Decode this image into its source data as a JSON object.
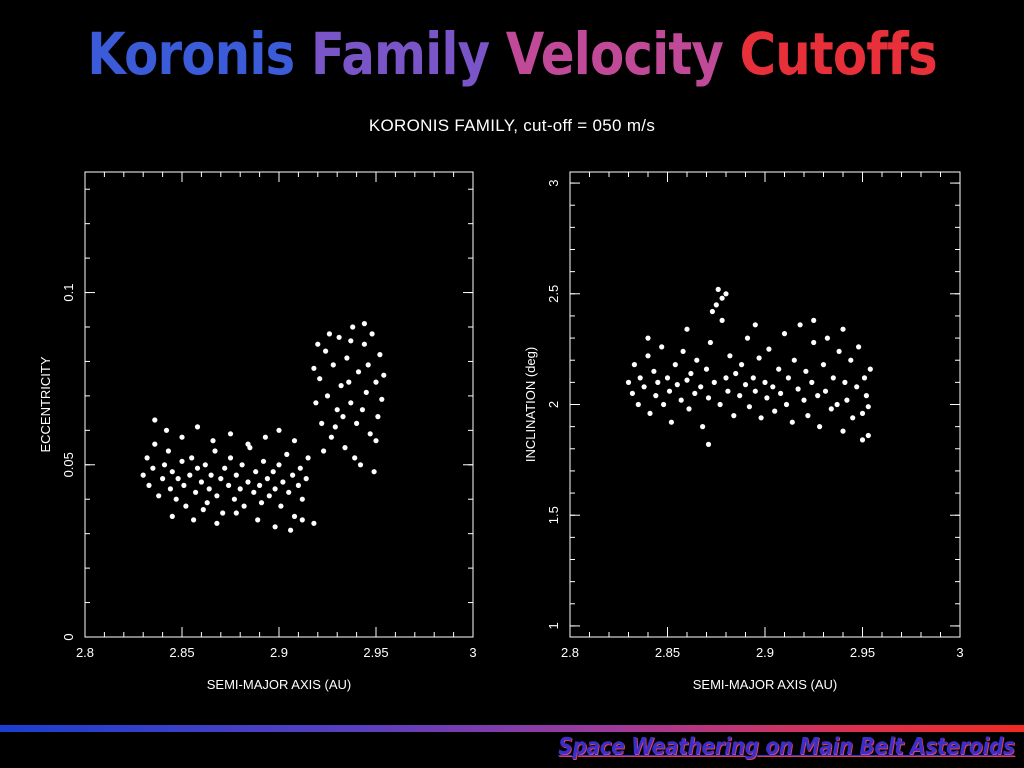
{
  "slide": {
    "title_words": [
      {
        "text": "Koronis",
        "color": "#3b5bd8"
      },
      {
        "text": "Family",
        "color": "#7a55c8"
      },
      {
        "text": "Velocity",
        "color": "#c04a98"
      },
      {
        "text": "Cutoffs",
        "color": "#e8303a"
      }
    ],
    "footer": "Space Weathering on Main Belt Asteroids"
  },
  "plot_heading": "KORONIS FAMILY, cut-off = 050 m/s",
  "chart_data": [
    {
      "type": "scatter",
      "name": "eccentricity-plot",
      "xlabel": "SEMI-MAJOR AXIS (AU)",
      "ylabel": "ECCENTRICITY",
      "xlim": [
        2.8,
        3.0
      ],
      "ylim": [
        0,
        0.135
      ],
      "xticks": [
        2.8,
        2.85,
        2.9,
        2.95,
        3
      ],
      "xtick_labels": [
        "2.8",
        "2.85",
        "2.9",
        "2.95",
        "3"
      ],
      "yticks": [
        0,
        0.05,
        0.1
      ],
      "ytick_labels": [
        "0",
        "0.05",
        "0.1"
      ],
      "marker_color": "#ffffff",
      "points": [
        [
          2.83,
          0.047
        ],
        [
          2.832,
          0.052
        ],
        [
          2.833,
          0.044
        ],
        [
          2.835,
          0.049
        ],
        [
          2.836,
          0.056
        ],
        [
          2.838,
          0.041
        ],
        [
          2.84,
          0.046
        ],
        [
          2.841,
          0.05
        ],
        [
          2.843,
          0.054
        ],
        [
          2.844,
          0.043
        ],
        [
          2.845,
          0.048
        ],
        [
          2.847,
          0.04
        ],
        [
          2.848,
          0.046
        ],
        [
          2.85,
          0.051
        ],
        [
          2.851,
          0.044
        ],
        [
          2.852,
          0.038
        ],
        [
          2.854,
          0.047
        ],
        [
          2.855,
          0.052
        ],
        [
          2.857,
          0.042
        ],
        [
          2.858,
          0.049
        ],
        [
          2.86,
          0.045
        ],
        [
          2.861,
          0.037
        ],
        [
          2.862,
          0.05
        ],
        [
          2.864,
          0.043
        ],
        [
          2.865,
          0.047
        ],
        [
          2.867,
          0.054
        ],
        [
          2.868,
          0.041
        ],
        [
          2.87,
          0.046
        ],
        [
          2.871,
          0.036
        ],
        [
          2.872,
          0.049
        ],
        [
          2.874,
          0.044
        ],
        [
          2.875,
          0.052
        ],
        [
          2.877,
          0.04
        ],
        [
          2.878,
          0.047
        ],
        [
          2.88,
          0.043
        ],
        [
          2.881,
          0.05
        ],
        [
          2.882,
          0.038
        ],
        [
          2.884,
          0.045
        ],
        [
          2.885,
          0.055
        ],
        [
          2.887,
          0.042
        ],
        [
          2.888,
          0.048
        ],
        [
          2.89,
          0.044
        ],
        [
          2.891,
          0.039
        ],
        [
          2.892,
          0.051
        ],
        [
          2.894,
          0.046
        ],
        [
          2.895,
          0.041
        ],
        [
          2.897,
          0.048
        ],
        [
          2.898,
          0.043
        ],
        [
          2.9,
          0.05
        ],
        [
          2.901,
          0.038
        ],
        [
          2.902,
          0.045
        ],
        [
          2.904,
          0.053
        ],
        [
          2.905,
          0.042
        ],
        [
          2.907,
          0.047
        ],
        [
          2.908,
          0.035
        ],
        [
          2.91,
          0.044
        ],
        [
          2.911,
          0.049
        ],
        [
          2.912,
          0.04
        ],
        [
          2.914,
          0.046
        ],
        [
          2.915,
          0.052
        ],
        [
          2.836,
          0.063
        ],
        [
          2.842,
          0.06
        ],
        [
          2.85,
          0.058
        ],
        [
          2.858,
          0.061
        ],
        [
          2.866,
          0.057
        ],
        [
          2.875,
          0.059
        ],
        [
          2.884,
          0.056
        ],
        [
          2.893,
          0.058
        ],
        [
          2.9,
          0.06
        ],
        [
          2.908,
          0.057
        ],
        [
          2.845,
          0.035
        ],
        [
          2.856,
          0.034
        ],
        [
          2.868,
          0.033
        ],
        [
          2.878,
          0.036
        ],
        [
          2.889,
          0.034
        ],
        [
          2.898,
          0.032
        ],
        [
          2.906,
          0.031
        ],
        [
          2.912,
          0.034
        ],
        [
          2.918,
          0.033
        ],
        [
          2.863,
          0.039
        ],
        [
          2.919,
          0.068
        ],
        [
          2.921,
          0.075
        ],
        [
          2.922,
          0.062
        ],
        [
          2.924,
          0.083
        ],
        [
          2.925,
          0.07
        ],
        [
          2.927,
          0.058
        ],
        [
          2.928,
          0.079
        ],
        [
          2.93,
          0.066
        ],
        [
          2.931,
          0.087
        ],
        [
          2.932,
          0.073
        ],
        [
          2.934,
          0.055
        ],
        [
          2.935,
          0.081
        ],
        [
          2.937,
          0.068
        ],
        [
          2.938,
          0.09
        ],
        [
          2.94,
          0.062
        ],
        [
          2.941,
          0.077
        ],
        [
          2.942,
          0.05
        ],
        [
          2.944,
          0.085
        ],
        [
          2.945,
          0.071
        ],
        [
          2.947,
          0.059
        ],
        [
          2.948,
          0.088
        ],
        [
          2.95,
          0.074
        ],
        [
          2.951,
          0.064
        ],
        [
          2.952,
          0.082
        ],
        [
          2.953,
          0.069
        ],
        [
          2.926,
          0.088
        ],
        [
          2.933,
          0.064
        ],
        [
          2.939,
          0.052
        ],
        [
          2.946,
          0.079
        ],
        [
          2.949,
          0.048
        ],
        [
          2.923,
          0.054
        ],
        [
          2.929,
          0.061
        ],
        [
          2.936,
          0.074
        ],
        [
          2.943,
          0.066
        ],
        [
          2.95,
          0.057
        ],
        [
          2.918,
          0.078
        ],
        [
          2.954,
          0.076
        ],
        [
          2.92,
          0.085
        ],
        [
          2.944,
          0.091
        ],
        [
          2.937,
          0.086
        ]
      ]
    },
    {
      "type": "scatter",
      "name": "inclination-plot",
      "xlabel": "SEMI-MAJOR AXIS (AU)",
      "ylabel": "INCLINATION (deg)",
      "xlim": [
        2.8,
        3.0
      ],
      "ylim": [
        0.95,
        3.05
      ],
      "xticks": [
        2.8,
        2.85,
        2.9,
        2.95,
        3
      ],
      "xtick_labels": [
        "2.8",
        "2.85",
        "2.9",
        "2.95",
        "3"
      ],
      "yticks": [
        1,
        1.5,
        2,
        2.5,
        3
      ],
      "ytick_labels": [
        "1",
        "1.5",
        "2",
        "2.5",
        "3"
      ],
      "marker_color": "#ffffff",
      "points": [
        [
          2.83,
          2.1
        ],
        [
          2.832,
          2.05
        ],
        [
          2.833,
          2.18
        ],
        [
          2.835,
          2.0
        ],
        [
          2.836,
          2.12
        ],
        [
          2.838,
          2.08
        ],
        [
          2.84,
          2.22
        ],
        [
          2.841,
          1.96
        ],
        [
          2.843,
          2.15
        ],
        [
          2.844,
          2.04
        ],
        [
          2.845,
          2.1
        ],
        [
          2.847,
          2.26
        ],
        [
          2.848,
          2.0
        ],
        [
          2.85,
          2.12
        ],
        [
          2.851,
          2.06
        ],
        [
          2.852,
          1.92
        ],
        [
          2.854,
          2.18
        ],
        [
          2.855,
          2.09
        ],
        [
          2.857,
          2.02
        ],
        [
          2.858,
          2.24
        ],
        [
          2.86,
          2.11
        ],
        [
          2.861,
          1.98
        ],
        [
          2.862,
          2.14
        ],
        [
          2.864,
          2.05
        ],
        [
          2.865,
          2.2
        ],
        [
          2.867,
          2.08
        ],
        [
          2.868,
          1.9
        ],
        [
          2.87,
          2.16
        ],
        [
          2.871,
          2.03
        ],
        [
          2.872,
          2.28
        ],
        [
          2.874,
          2.1
        ],
        [
          2.875,
          2.45
        ],
        [
          2.877,
          2.0
        ],
        [
          2.878,
          2.38
        ],
        [
          2.88,
          2.12
        ],
        [
          2.881,
          2.06
        ],
        [
          2.882,
          2.22
        ],
        [
          2.884,
          1.95
        ],
        [
          2.885,
          2.14
        ],
        [
          2.887,
          2.04
        ],
        [
          2.888,
          2.18
        ],
        [
          2.89,
          2.09
        ],
        [
          2.891,
          2.3
        ],
        [
          2.892,
          1.99
        ],
        [
          2.894,
          2.12
        ],
        [
          2.895,
          2.06
        ],
        [
          2.897,
          2.21
        ],
        [
          2.898,
          1.94
        ],
        [
          2.9,
          2.1
        ],
        [
          2.901,
          2.03
        ],
        [
          2.902,
          2.25
        ],
        [
          2.904,
          2.08
        ],
        [
          2.905,
          1.97
        ],
        [
          2.907,
          2.16
        ],
        [
          2.908,
          2.05
        ],
        [
          2.91,
          2.32
        ],
        [
          2.911,
          2.0
        ],
        [
          2.912,
          2.12
        ],
        [
          2.914,
          1.92
        ],
        [
          2.915,
          2.2
        ],
        [
          2.917,
          2.07
        ],
        [
          2.918,
          2.36
        ],
        [
          2.92,
          2.02
        ],
        [
          2.921,
          2.15
        ],
        [
          2.922,
          1.95
        ],
        [
          2.924,
          2.1
        ],
        [
          2.925,
          2.28
        ],
        [
          2.927,
          2.04
        ],
        [
          2.928,
          1.9
        ],
        [
          2.93,
          2.18
        ],
        [
          2.931,
          2.06
        ],
        [
          2.932,
          2.3
        ],
        [
          2.934,
          1.98
        ],
        [
          2.935,
          2.12
        ],
        [
          2.937,
          2.0
        ],
        [
          2.938,
          2.24
        ],
        [
          2.94,
          1.88
        ],
        [
          2.941,
          2.1
        ],
        [
          2.942,
          2.02
        ],
        [
          2.944,
          2.2
        ],
        [
          2.945,
          1.94
        ],
        [
          2.947,
          2.08
        ],
        [
          2.948,
          2.26
        ],
        [
          2.95,
          1.96
        ],
        [
          2.951,
          2.12
        ],
        [
          2.952,
          2.04
        ],
        [
          2.953,
          1.86
        ],
        [
          2.954,
          2.16
        ],
        [
          2.95,
          1.84
        ],
        [
          2.953,
          1.99
        ],
        [
          2.876,
          2.52
        ],
        [
          2.878,
          2.48
        ],
        [
          2.873,
          2.42
        ],
        [
          2.871,
          1.82
        ],
        [
          2.88,
          2.5
        ],
        [
          2.925,
          2.38
        ],
        [
          2.94,
          2.34
        ],
        [
          2.86,
          2.34
        ],
        [
          2.84,
          2.3
        ],
        [
          2.895,
          2.36
        ]
      ]
    }
  ]
}
